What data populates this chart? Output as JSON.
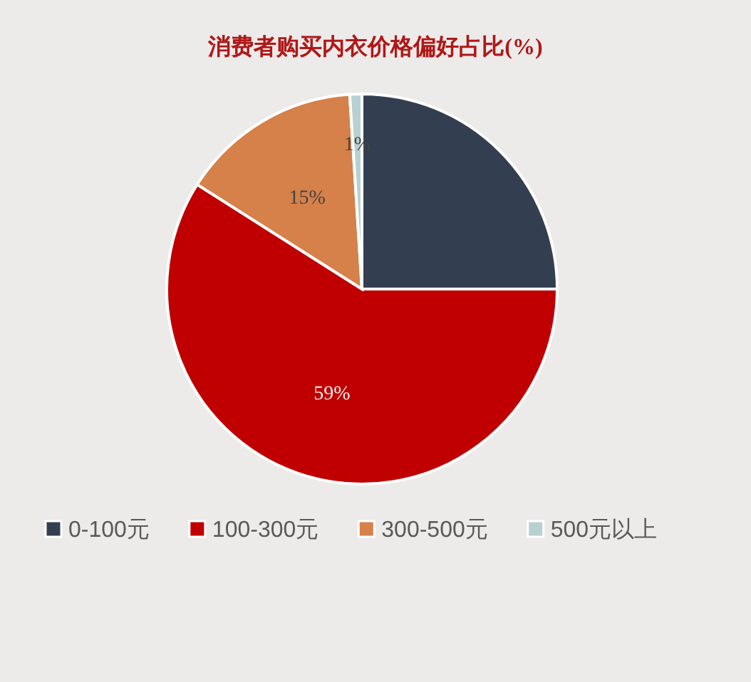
{
  "chart_data": {
    "type": "pie",
    "title": "消费者购买内衣价格偏好占比(%)",
    "categories": [
      "0-100元",
      "100-300元",
      "300-500元",
      "500元以上"
    ],
    "values": [
      25,
      59,
      15,
      1
    ],
    "colors": [
      "#333f50",
      "#c00000",
      "#d6804a",
      "#b8d0d0"
    ],
    "value_labels": [
      null,
      "59%",
      "15%",
      "1%"
    ],
    "legend": "bottom"
  }
}
